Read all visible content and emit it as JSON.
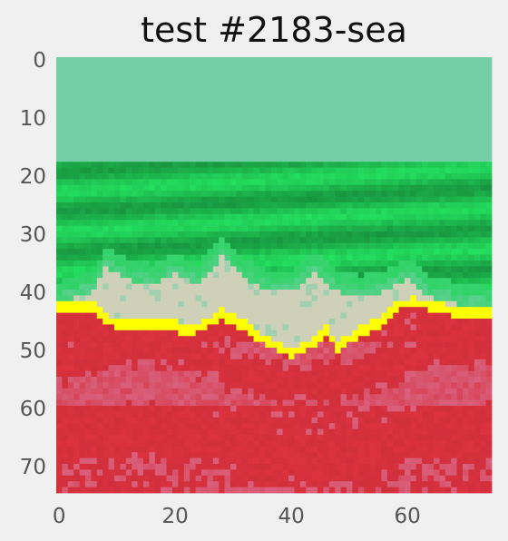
{
  "chart_data": {
    "type": "heatmap",
    "title": "test #2183-sea",
    "xlabel": "",
    "ylabel": "",
    "xlim": [
      0,
      74
    ],
    "ylim": [
      74,
      0
    ],
    "x_ticks": [
      "0",
      "20",
      "40",
      "60"
    ],
    "y_ticks": [
      "0",
      "10",
      "20",
      "30",
      "40",
      "50",
      "60",
      "70"
    ],
    "grid": false,
    "legend": "none",
    "classes": [
      {
        "name": "sky",
        "color": "#74cfa7"
      },
      {
        "name": "sea",
        "color": "#22d45a"
      },
      {
        "name": "foam",
        "color": "#ced0b8"
      },
      {
        "name": "shoreline",
        "color": "#ffff00"
      },
      {
        "name": "sand",
        "color": "#d6313d"
      },
      {
        "name": "wet-sand",
        "color": "#d9607c"
      }
    ],
    "horizon_row": 17.5,
    "shoreline_profile": {
      "x": [
        0,
        6,
        10,
        20,
        22,
        25,
        28,
        32,
        36,
        40,
        44,
        46,
        48,
        52,
        56,
        58,
        61,
        64,
        70,
        74
      ],
      "y": [
        42,
        42,
        45,
        45,
        46,
        45,
        43,
        45,
        48,
        49.5,
        48,
        46,
        48.5,
        46,
        44,
        41.5,
        41,
        41.5,
        43,
        43
      ]
    },
    "foam_top_profile": {
      "x": [
        0,
        6,
        8,
        12,
        16,
        20,
        24,
        28,
        32,
        36,
        40,
        44,
        48,
        52,
        56,
        60,
        64,
        68,
        74
      ],
      "y": [
        42,
        40,
        36,
        38,
        39,
        37,
        39,
        34,
        38,
        40,
        40,
        37,
        40,
        41,
        40,
        38,
        41,
        42,
        43
      ]
    }
  }
}
